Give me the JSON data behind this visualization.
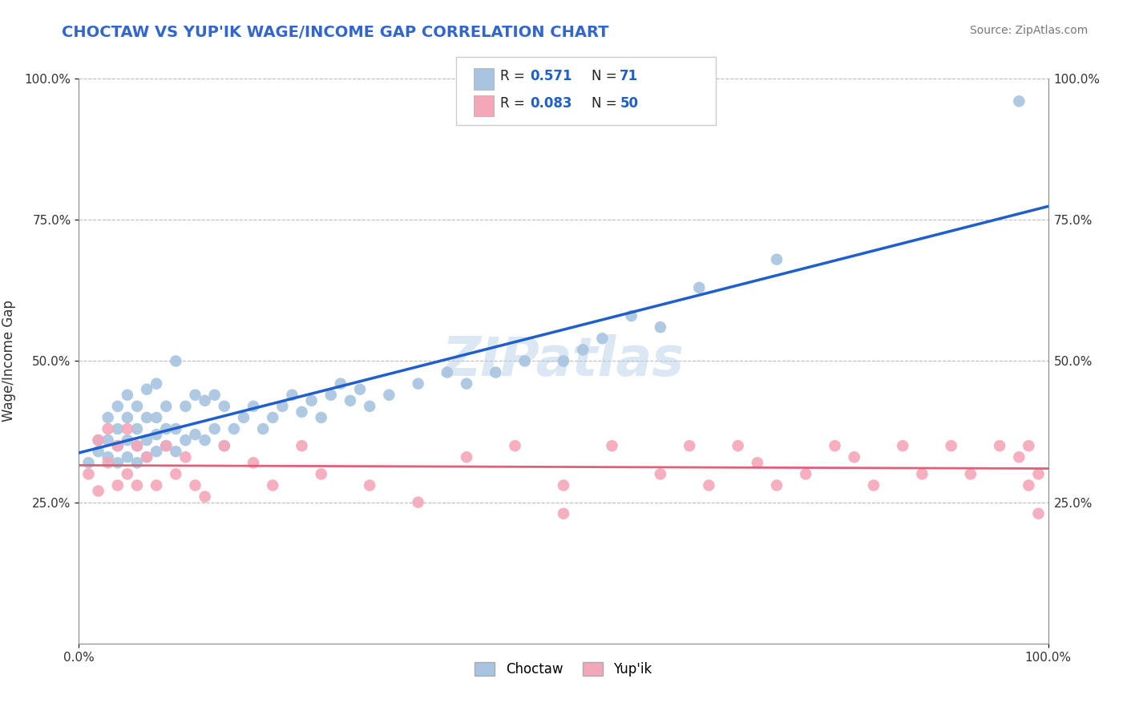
{
  "title": "CHOCTAW VS YUP'IK WAGE/INCOME GAP CORRELATION CHART",
  "source_text": "Source: ZipAtlas.com",
  "ylabel": "Wage/Income Gap",
  "xlim": [
    0.0,
    1.0
  ],
  "ylim": [
    0.0,
    1.0
  ],
  "xtick_positions": [
    0.0,
    1.0
  ],
  "xtick_labels": [
    "0.0%",
    "100.0%"
  ],
  "ytick_positions": [
    0.25,
    0.5,
    0.75,
    1.0
  ],
  "ytick_labels": [
    "25.0%",
    "50.0%",
    "75.0%",
    "100.0%"
  ],
  "choctaw_color": "#a8c4e0",
  "yupik_color": "#f4a7b9",
  "choctaw_line_color": "#1e5fcc",
  "yupik_line_color": "#e0607a",
  "choctaw_R": 0.571,
  "choctaw_N": 71,
  "yupik_R": 0.083,
  "yupik_N": 50,
  "watermark": "ZIPatlas",
  "background_color": "#ffffff",
  "grid_color": "#bbbbbb",
  "choctaw_x": [
    0.01,
    0.02,
    0.02,
    0.03,
    0.03,
    0.03,
    0.04,
    0.04,
    0.04,
    0.04,
    0.05,
    0.05,
    0.05,
    0.05,
    0.06,
    0.06,
    0.06,
    0.06,
    0.07,
    0.07,
    0.07,
    0.07,
    0.08,
    0.08,
    0.08,
    0.08,
    0.09,
    0.09,
    0.09,
    0.1,
    0.1,
    0.1,
    0.11,
    0.11,
    0.12,
    0.12,
    0.13,
    0.13,
    0.14,
    0.14,
    0.15,
    0.15,
    0.16,
    0.17,
    0.18,
    0.19,
    0.2,
    0.21,
    0.22,
    0.23,
    0.24,
    0.25,
    0.26,
    0.27,
    0.28,
    0.29,
    0.3,
    0.32,
    0.35,
    0.38,
    0.4,
    0.43,
    0.46,
    0.5,
    0.52,
    0.54,
    0.57,
    0.6,
    0.64,
    0.72,
    0.97
  ],
  "choctaw_y": [
    0.32,
    0.34,
    0.36,
    0.33,
    0.36,
    0.4,
    0.32,
    0.35,
    0.38,
    0.42,
    0.33,
    0.36,
    0.4,
    0.44,
    0.32,
    0.35,
    0.38,
    0.42,
    0.33,
    0.36,
    0.4,
    0.45,
    0.34,
    0.37,
    0.4,
    0.46,
    0.35,
    0.38,
    0.42,
    0.34,
    0.38,
    0.5,
    0.36,
    0.42,
    0.37,
    0.44,
    0.36,
    0.43,
    0.38,
    0.44,
    0.35,
    0.42,
    0.38,
    0.4,
    0.42,
    0.38,
    0.4,
    0.42,
    0.44,
    0.41,
    0.43,
    0.4,
    0.44,
    0.46,
    0.43,
    0.45,
    0.42,
    0.44,
    0.46,
    0.48,
    0.46,
    0.48,
    0.5,
    0.5,
    0.52,
    0.54,
    0.58,
    0.56,
    0.63,
    0.68,
    0.96
  ],
  "yupik_x": [
    0.01,
    0.02,
    0.02,
    0.03,
    0.03,
    0.04,
    0.04,
    0.05,
    0.05,
    0.06,
    0.06,
    0.07,
    0.08,
    0.09,
    0.1,
    0.11,
    0.12,
    0.13,
    0.15,
    0.18,
    0.2,
    0.23,
    0.25,
    0.3,
    0.35,
    0.4,
    0.45,
    0.5,
    0.5,
    0.55,
    0.6,
    0.63,
    0.65,
    0.68,
    0.7,
    0.72,
    0.75,
    0.78,
    0.8,
    0.82,
    0.85,
    0.87,
    0.9,
    0.92,
    0.95,
    0.97,
    0.98,
    0.98,
    0.99,
    0.99
  ],
  "yupik_y": [
    0.3,
    0.27,
    0.36,
    0.32,
    0.38,
    0.28,
    0.35,
    0.3,
    0.38,
    0.28,
    0.35,
    0.33,
    0.28,
    0.35,
    0.3,
    0.33,
    0.28,
    0.26,
    0.35,
    0.32,
    0.28,
    0.35,
    0.3,
    0.28,
    0.25,
    0.33,
    0.35,
    0.28,
    0.23,
    0.35,
    0.3,
    0.35,
    0.28,
    0.35,
    0.32,
    0.28,
    0.3,
    0.35,
    0.33,
    0.28,
    0.35,
    0.3,
    0.35,
    0.3,
    0.35,
    0.33,
    0.28,
    0.35,
    0.3,
    0.23
  ]
}
